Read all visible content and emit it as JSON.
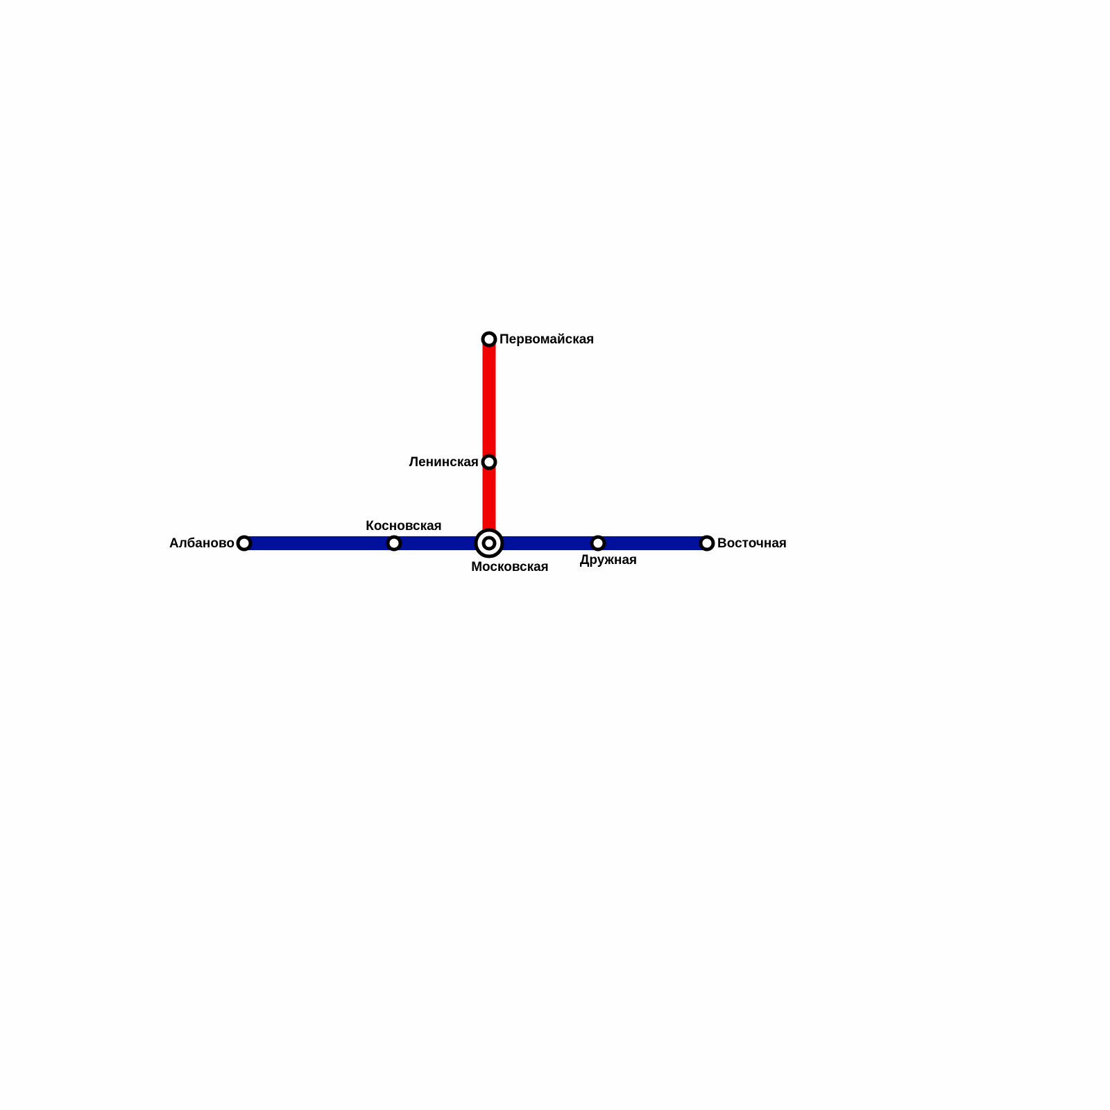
{
  "lines": [
    {
      "id": "blue",
      "color": "#02119c"
    },
    {
      "id": "red",
      "color": "#f00000"
    }
  ],
  "stations": {
    "albanovo": "Албаново",
    "kosnovskaya": "Косновская",
    "moskovskaya": "Московская",
    "druzhnaya": "Дружная",
    "vostochnaya": "Восточная",
    "leninskaya": "Ленинская",
    "pervomayskaya": "Первомайская"
  },
  "interchange": "moskovskaya"
}
